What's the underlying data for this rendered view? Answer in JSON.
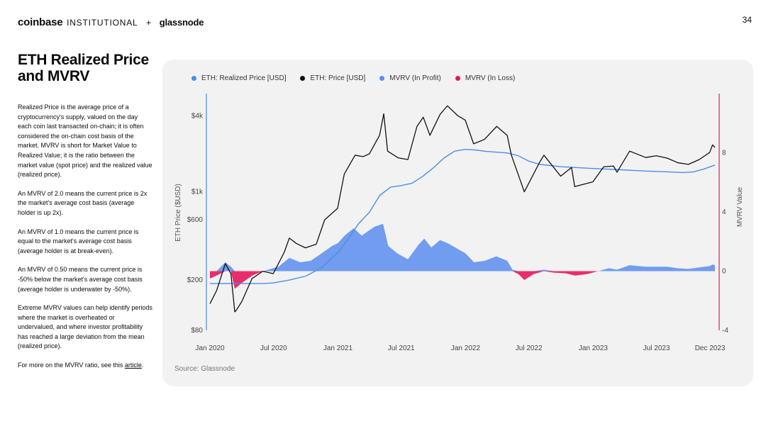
{
  "header": {
    "brand_primary": "coinbase",
    "brand_secondary": "INSTITUTIONAL",
    "separator": "+",
    "partner": "glassnode",
    "page_number": "34"
  },
  "sidebar": {
    "title": "ETH Realized Price and MVRV",
    "paragraphs": [
      "Realized Price is the average price of a cryptocurrency's supply, valued on the day each coin last transacted on-chain; it is often considered the on-chain cost basis of the market. MVRV is short for Market Value to Realized Value; it is the ratio between the market value (spot price) and the realized value (realized price).",
      "An MVRV of 2.0 means the current price is 2x the market's average cost basis (average holder is up 2x).",
      "An MVRV of 1.0 means the current price is equal to the market's average cost basis (average holder is at break-even).",
      "An MVRV of 0.50 means the current price is -50% below the market's average cost basis (average holder is underwater by -50%).",
      "Extreme MVRV values can help identify periods where the market is overheated or undervalued, and where investor profitability has reached a large deviation from the mean (realized price)."
    ],
    "footer_prefix": "For more on the MVRV ratio, see this ",
    "footer_link": "article",
    "footer_suffix": "."
  },
  "source": "Source: Glassnode",
  "colors": {
    "realized": "#4a8fe7",
    "price": "#111111",
    "mvrv_profit": "#5b8def",
    "mvrv_loss": "#e8175d",
    "panel_bg": "#f2f2f2"
  },
  "chart_data": {
    "type": "line",
    "legend": [
      {
        "label": "ETH: Realized Price [USD]",
        "color": "#4a8fe7"
      },
      {
        "label": "ETH: Price [USD]",
        "color": "#111111"
      },
      {
        "label": "MVRV (In Profit)",
        "color": "#5b8def"
      },
      {
        "label": "MVRV (In Loss)",
        "color": "#e8175d"
      }
    ],
    "legend_position": "top-left",
    "ylabel_left": "ETH Price ($USD)",
    "ylabel_right": "MVRV Value",
    "y_left_scale": "log",
    "y_left_range": [
      80,
      6000
    ],
    "y_left_ticks": [
      {
        "value": 80,
        "label": "$80"
      },
      {
        "value": 200,
        "label": "$200"
      },
      {
        "value": 600,
        "label": "$600"
      },
      {
        "value": 1000,
        "label": "$1k"
      },
      {
        "value": 4000,
        "label": "$4k"
      }
    ],
    "y_right_range": [
      -4,
      12
    ],
    "y_right_ticks": [
      {
        "value": -4,
        "label": "-4"
      },
      {
        "value": 0,
        "label": "0"
      },
      {
        "value": 4,
        "label": "4"
      },
      {
        "value": 8,
        "label": "8"
      }
    ],
    "x_range": [
      "2020-01-01",
      "2023-12-15"
    ],
    "x_ticks": [
      {
        "date": "2020-01-01",
        "label": "Jan 2020"
      },
      {
        "date": "2020-07-01",
        "label": "Jul 2020"
      },
      {
        "date": "2021-01-01",
        "label": "Jan 2021"
      },
      {
        "date": "2021-07-01",
        "label": "Jul 2021"
      },
      {
        "date": "2022-01-01",
        "label": "Jan 2022"
      },
      {
        "date": "2022-07-01",
        "label": "Jul 2022"
      },
      {
        "date": "2023-01-01",
        "label": "Jan 2023"
      },
      {
        "date": "2023-07-01",
        "label": "Jul 2023"
      },
      {
        "date": "2023-12-01",
        "label": "Dec 2023"
      }
    ],
    "grid": false,
    "series": [
      {
        "name": "ETH: Price [USD]",
        "axis": "left",
        "points": [
          [
            "2020-01-01",
            130
          ],
          [
            "2020-01-20",
            165
          ],
          [
            "2020-02-14",
            270
          ],
          [
            "2020-03-01",
            225
          ],
          [
            "2020-03-12",
            112
          ],
          [
            "2020-03-16",
            115
          ],
          [
            "2020-04-01",
            135
          ],
          [
            "2020-04-30",
            205
          ],
          [
            "2020-05-31",
            235
          ],
          [
            "2020-06-30",
            225
          ],
          [
            "2020-07-31",
            330
          ],
          [
            "2020-08-15",
            430
          ],
          [
            "2020-09-04",
            390
          ],
          [
            "2020-09-30",
            360
          ],
          [
            "2020-10-31",
            385
          ],
          [
            "2020-11-24",
            600
          ],
          [
            "2020-12-31",
            740
          ],
          [
            "2021-01-19",
            1380
          ],
          [
            "2021-02-19",
            1950
          ],
          [
            "2021-03-14",
            1900
          ],
          [
            "2021-04-01",
            2000
          ],
          [
            "2021-04-30",
            2800
          ],
          [
            "2021-05-12",
            4150
          ],
          [
            "2021-05-23",
            2100
          ],
          [
            "2021-06-22",
            1860
          ],
          [
            "2021-07-20",
            1800
          ],
          [
            "2021-08-15",
            3300
          ],
          [
            "2021-09-02",
            3900
          ],
          [
            "2021-09-21",
            2800
          ],
          [
            "2021-10-20",
            4100
          ],
          [
            "2021-11-10",
            4800
          ],
          [
            "2021-12-10",
            4000
          ],
          [
            "2021-12-31",
            3700
          ],
          [
            "2022-01-24",
            2400
          ],
          [
            "2022-02-24",
            2600
          ],
          [
            "2022-03-31",
            3300
          ],
          [
            "2022-04-30",
            2800
          ],
          [
            "2022-05-12",
            1950
          ],
          [
            "2022-06-18",
            1000
          ],
          [
            "2022-07-31",
            1700
          ],
          [
            "2022-08-13",
            1950
          ],
          [
            "2022-09-30",
            1330
          ],
          [
            "2022-10-31",
            1560
          ],
          [
            "2022-11-09",
            1100
          ],
          [
            "2022-12-31",
            1200
          ],
          [
            "2023-01-31",
            1580
          ],
          [
            "2023-02-28",
            1600
          ],
          [
            "2023-03-10",
            1430
          ],
          [
            "2023-04-15",
            2100
          ],
          [
            "2023-05-31",
            1870
          ],
          [
            "2023-06-30",
            1930
          ],
          [
            "2023-07-31",
            1850
          ],
          [
            "2023-08-31",
            1700
          ],
          [
            "2023-09-30",
            1650
          ],
          [
            "2023-10-31",
            1800
          ],
          [
            "2023-11-30",
            2050
          ],
          [
            "2023-12-08",
            2350
          ],
          [
            "2023-12-15",
            2250
          ]
        ]
      },
      {
        "name": "ETH: Realized Price [USD]",
        "axis": "left",
        "points": [
          [
            "2020-01-01",
            188
          ],
          [
            "2020-03-01",
            188
          ],
          [
            "2020-06-01",
            188
          ],
          [
            "2020-07-01",
            190
          ],
          [
            "2020-08-15",
            200
          ],
          [
            "2020-10-01",
            215
          ],
          [
            "2020-11-15",
            250
          ],
          [
            "2020-12-15",
            300
          ],
          [
            "2021-01-01",
            330
          ],
          [
            "2021-02-01",
            430
          ],
          [
            "2021-03-01",
            560
          ],
          [
            "2021-04-01",
            690
          ],
          [
            "2021-05-01",
            940
          ],
          [
            "2021-06-01",
            1090
          ],
          [
            "2021-07-01",
            1120
          ],
          [
            "2021-08-01",
            1170
          ],
          [
            "2021-09-01",
            1330
          ],
          [
            "2021-10-01",
            1550
          ],
          [
            "2021-11-01",
            1860
          ],
          [
            "2021-12-01",
            2100
          ],
          [
            "2022-01-01",
            2170
          ],
          [
            "2022-02-01",
            2140
          ],
          [
            "2022-03-01",
            2090
          ],
          [
            "2022-04-01",
            2060
          ],
          [
            "2022-05-01",
            2030
          ],
          [
            "2022-06-01",
            1930
          ],
          [
            "2022-07-01",
            1750
          ],
          [
            "2022-08-01",
            1650
          ],
          [
            "2022-10-01",
            1580
          ],
          [
            "2023-01-01",
            1530
          ],
          [
            "2023-04-01",
            1490
          ],
          [
            "2023-06-01",
            1460
          ],
          [
            "2023-08-01",
            1440
          ],
          [
            "2023-09-15",
            1420
          ],
          [
            "2023-10-15",
            1440
          ],
          [
            "2023-11-15",
            1520
          ],
          [
            "2023-12-15",
            1630
          ]
        ]
      },
      {
        "name": "MVRV",
        "axis": "right",
        "type": "area",
        "points": [
          [
            "2020-01-01",
            -0.5
          ],
          [
            "2020-01-20",
            -0.3
          ],
          [
            "2020-02-14",
            0.6
          ],
          [
            "2020-03-01",
            0.3
          ],
          [
            "2020-03-12",
            -1.2
          ],
          [
            "2020-04-01",
            -0.8
          ],
          [
            "2020-05-01",
            -0.3
          ],
          [
            "2020-06-01",
            0.0
          ],
          [
            "2020-07-15",
            0.3
          ],
          [
            "2020-08-15",
            0.9
          ],
          [
            "2020-09-15",
            0.6
          ],
          [
            "2020-10-15",
            0.7
          ],
          [
            "2020-11-15",
            1.2
          ],
          [
            "2020-12-15",
            1.7
          ],
          [
            "2021-01-01",
            1.9
          ],
          [
            "2021-01-20",
            2.4
          ],
          [
            "2021-02-15",
            2.9
          ],
          [
            "2021-03-10",
            2.4
          ],
          [
            "2021-04-15",
            3.0
          ],
          [
            "2021-05-10",
            3.2
          ],
          [
            "2021-05-25",
            1.7
          ],
          [
            "2021-06-20",
            1.2
          ],
          [
            "2021-07-20",
            0.8
          ],
          [
            "2021-08-20",
            1.8
          ],
          [
            "2021-09-05",
            2.2
          ],
          [
            "2021-09-25",
            1.6
          ],
          [
            "2021-10-20",
            2.1
          ],
          [
            "2021-11-10",
            1.9
          ],
          [
            "2021-12-10",
            1.5
          ],
          [
            "2022-01-01",
            1.2
          ],
          [
            "2022-01-25",
            0.6
          ],
          [
            "2022-02-25",
            0.7
          ],
          [
            "2022-03-30",
            1.0
          ],
          [
            "2022-04-30",
            0.7
          ],
          [
            "2022-05-15",
            0.1
          ],
          [
            "2022-06-01",
            -0.2
          ],
          [
            "2022-06-18",
            -0.6
          ],
          [
            "2022-07-15",
            -0.2
          ],
          [
            "2022-08-13",
            0.1
          ],
          [
            "2022-09-10",
            -0.1
          ],
          [
            "2022-10-15",
            -0.15
          ],
          [
            "2022-11-10",
            -0.3
          ],
          [
            "2022-12-15",
            -0.2
          ],
          [
            "2023-01-15",
            0.0
          ],
          [
            "2023-02-15",
            0.2
          ],
          [
            "2023-03-10",
            0.1
          ],
          [
            "2023-04-15",
            0.4
          ],
          [
            "2023-05-31",
            0.3
          ],
          [
            "2023-06-30",
            0.3
          ],
          [
            "2023-07-31",
            0.3
          ],
          [
            "2023-08-31",
            0.2
          ],
          [
            "2023-09-30",
            0.15
          ],
          [
            "2023-10-31",
            0.25
          ],
          [
            "2023-11-30",
            0.35
          ],
          [
            "2023-12-08",
            0.45
          ],
          [
            "2023-12-15",
            0.4
          ]
        ]
      }
    ]
  }
}
